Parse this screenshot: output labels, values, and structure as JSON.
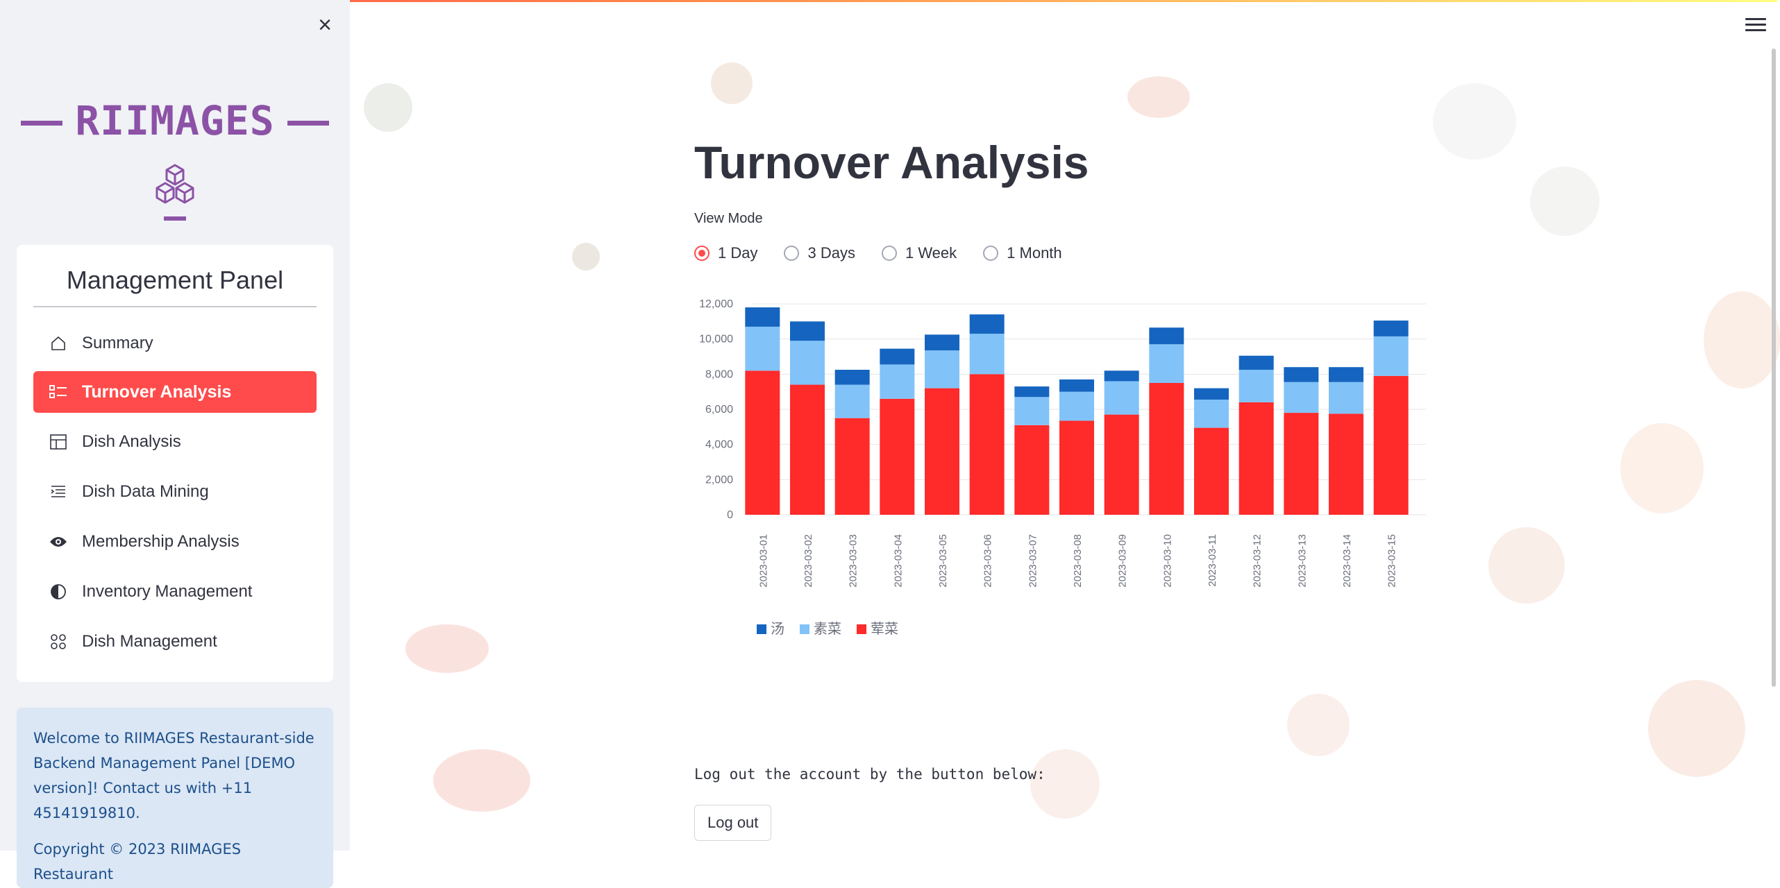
{
  "sidebar": {
    "brand": "RIIMAGES",
    "panel_title": "Management Panel",
    "items": [
      {
        "label": "Summary",
        "icon": "house-icon",
        "active": false
      },
      {
        "label": "Turnover Analysis",
        "icon": "list-check-icon",
        "active": true
      },
      {
        "label": "Dish Analysis",
        "icon": "layout-icon",
        "active": false
      },
      {
        "label": "Dish Data Mining",
        "icon": "text-indent-icon",
        "active": false
      },
      {
        "label": "Membership Analysis",
        "icon": "eye-icon",
        "active": false
      },
      {
        "label": "Inventory Management",
        "icon": "half-circle-icon",
        "active": false
      },
      {
        "label": "Dish Management",
        "icon": "grid-circles-icon",
        "active": false
      }
    ],
    "info_text": "Welcome to RIIMAGES Restaurant-side Backend Management Panel [DEMO version]! Contact us with +11 45141919810.",
    "copyright_text": "Copyright © 2023 RIIMAGES Restaurant"
  },
  "main": {
    "title": "Turnover Analysis",
    "view_mode_label": "View Mode",
    "view_modes": [
      "1 Day",
      "3 Days",
      "1 Week",
      "1 Month"
    ],
    "selected_view_mode": "1 Day",
    "logout_text": "Log out the account by the button below:",
    "logout_button": "Log out"
  },
  "colors": {
    "accent": "#ff4b4b",
    "brand": "#8c52a6",
    "series_1": "#1565c0",
    "series_2": "#81c3f8",
    "series_3": "#ff2a2a"
  },
  "chart_data": {
    "type": "bar",
    "stacked": true,
    "categories": [
      "2023-03-01",
      "2023-03-02",
      "2023-03-03",
      "2023-03-04",
      "2023-03-05",
      "2023-03-06",
      "2023-03-07",
      "2023-03-08",
      "2023-03-09",
      "2023-03-10",
      "2023-03-11",
      "2023-03-12",
      "2023-03-13",
      "2023-03-14",
      "2023-03-15"
    ],
    "series": [
      {
        "name": "荤菜",
        "values": [
          8200,
          7400,
          5500,
          6600,
          7200,
          8000,
          5100,
          5350,
          5700,
          7500,
          4950,
          6400,
          5800,
          5750,
          7900
        ]
      },
      {
        "name": "素菜",
        "values": [
          2500,
          2500,
          1900,
          1950,
          2150,
          2300,
          1600,
          1650,
          1900,
          2200,
          1600,
          1850,
          1750,
          1800,
          2250
        ]
      },
      {
        "name": "汤",
        "values": [
          1100,
          1100,
          850,
          900,
          900,
          1100,
          600,
          700,
          600,
          950,
          650,
          800,
          850,
          850,
          900
        ]
      }
    ],
    "yticks": [
      0,
      2000,
      4000,
      6000,
      8000,
      10000,
      12000
    ],
    "ylim": [
      0,
      12000
    ],
    "legend_order": [
      "汤",
      "素菜",
      "荤菜"
    ],
    "legend_position": "bottom-left",
    "grid": true,
    "x_tick_rotation": -90
  }
}
